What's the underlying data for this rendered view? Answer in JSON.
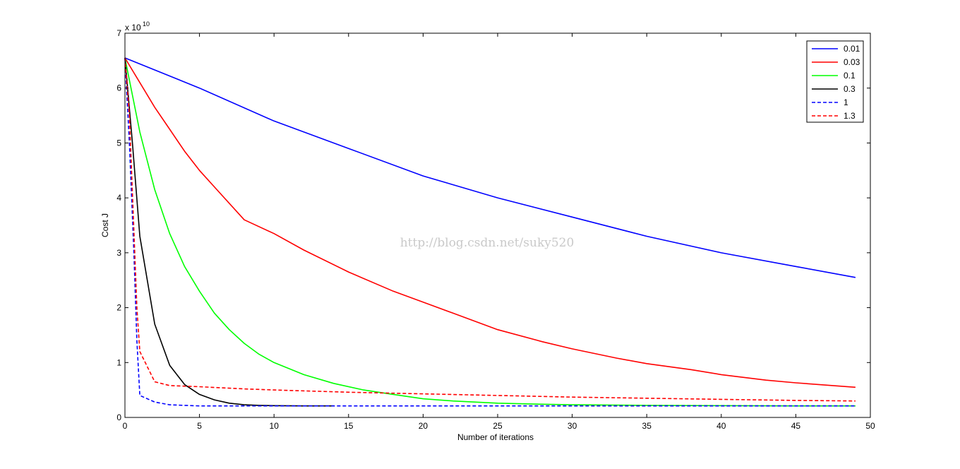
{
  "chart_data": {
    "type": "line",
    "xlabel": "Number of iterations",
    "ylabel": "Cost J",
    "xlim": [
      0,
      50
    ],
    "ylim": [
      0,
      7
    ],
    "y_multiplier_label": "x 10",
    "y_multiplier_exponent": "10",
    "x_ticks": [
      "0",
      "5",
      "10",
      "15",
      "20",
      "25",
      "30",
      "35",
      "40",
      "45",
      "50"
    ],
    "y_ticks": [
      "0",
      "1",
      "2",
      "3",
      "4",
      "5",
      "6",
      "7"
    ],
    "legend_position": "top-right",
    "grid": false,
    "watermark": "http://blog.csdn.net/suky520",
    "series": [
      {
        "name": "0.01",
        "color": "#0000ff",
        "style": "solid",
        "x": [
          0,
          5,
          10,
          15,
          20,
          25,
          30,
          35,
          40,
          45,
          49
        ],
        "y": [
          6.55,
          6.0,
          5.4,
          4.9,
          4.4,
          4.0,
          3.65,
          3.3,
          3.0,
          2.75,
          2.55
        ]
      },
      {
        "name": "0.03",
        "color": "#ff0000",
        "style": "solid",
        "x": [
          0,
          1,
          2,
          3,
          4,
          5,
          6,
          8,
          10,
          12,
          15,
          18,
          20,
          22,
          25,
          28,
          30,
          33,
          35,
          38,
          40,
          43,
          45,
          49
        ],
        "y": [
          6.55,
          6.1,
          5.65,
          5.25,
          4.85,
          4.5,
          4.2,
          3.6,
          3.35,
          3.05,
          2.65,
          2.3,
          2.1,
          1.9,
          1.6,
          1.38,
          1.25,
          1.08,
          0.98,
          0.87,
          0.78,
          0.68,
          0.63,
          0.55
        ]
      },
      {
        "name": "0.1",
        "color": "#00ff00",
        "style": "solid",
        "x": [
          0,
          1,
          2,
          3,
          4,
          5,
          6,
          7,
          8,
          9,
          10,
          12,
          14,
          16,
          18,
          20,
          22,
          25,
          28,
          30,
          35,
          40,
          45,
          49
        ],
        "y": [
          6.55,
          5.2,
          4.15,
          3.35,
          2.75,
          2.3,
          1.9,
          1.6,
          1.35,
          1.15,
          1.0,
          0.78,
          0.62,
          0.5,
          0.42,
          0.34,
          0.3,
          0.26,
          0.24,
          0.23,
          0.22,
          0.215,
          0.21,
          0.21
        ]
      },
      {
        "name": "0.3",
        "color": "#000000",
        "style": "solid",
        "x": [
          0,
          0.5,
          1,
          2,
          3,
          4,
          5,
          6,
          7,
          8,
          9,
          10,
          12,
          14
        ],
        "y": [
          6.55,
          5.0,
          3.3,
          1.7,
          0.95,
          0.6,
          0.42,
          0.32,
          0.26,
          0.23,
          0.22,
          0.215,
          0.21,
          0.21
        ]
      },
      {
        "name": "1",
        "color": "#0000ff",
        "style": "dashed",
        "x": [
          0,
          0.3,
          0.6,
          0.8,
          1,
          2,
          3,
          4,
          5,
          10,
          20,
          30,
          40,
          49
        ],
        "y": [
          6.55,
          5.0,
          3.0,
          1.4,
          0.4,
          0.28,
          0.23,
          0.22,
          0.21,
          0.21,
          0.21,
          0.21,
          0.21,
          0.21
        ]
      },
      {
        "name": "1.3",
        "color": "#ff0000",
        "style": "dashed",
        "x": [
          0,
          0.3,
          0.6,
          0.8,
          1,
          2,
          3,
          5,
          8,
          10,
          15,
          20,
          25,
          30,
          35,
          40,
          45,
          49
        ],
        "y": [
          6.55,
          5.5,
          3.4,
          2.0,
          1.2,
          0.65,
          0.58,
          0.56,
          0.52,
          0.5,
          0.46,
          0.43,
          0.4,
          0.37,
          0.35,
          0.33,
          0.31,
          0.3
        ]
      }
    ]
  }
}
